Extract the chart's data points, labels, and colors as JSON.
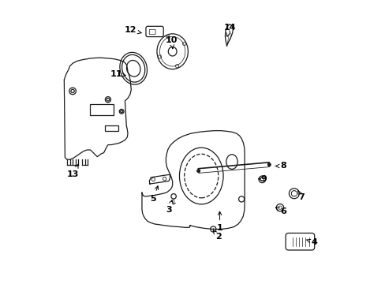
{
  "background_color": "#ffffff",
  "line_color": "#1a1a1a",
  "fig_width": 4.89,
  "fig_height": 3.6,
  "dpi": 100,
  "label_fontsize": 8,
  "label_fontweight": "bold",
  "parts_labels": {
    "1": [
      0.595,
      0.265,
      0.595,
      0.195
    ],
    "2": [
      0.57,
      0.19,
      0.59,
      0.165
    ],
    "3": [
      0.43,
      0.305,
      0.415,
      0.26
    ],
    "4": [
      0.9,
      0.155,
      0.93,
      0.145
    ],
    "5": [
      0.38,
      0.355,
      0.36,
      0.3
    ],
    "6": [
      0.79,
      0.27,
      0.82,
      0.255
    ],
    "7": [
      0.87,
      0.33,
      0.885,
      0.305
    ],
    "8": [
      0.79,
      0.415,
      0.82,
      0.415
    ],
    "9": [
      0.73,
      0.37,
      0.75,
      0.368
    ],
    "10": [
      0.43,
      0.82,
      0.425,
      0.86
    ],
    "11": [
      0.265,
      0.735,
      0.23,
      0.74
    ],
    "12": [
      0.32,
      0.885,
      0.28,
      0.895
    ],
    "13": [
      0.1,
      0.43,
      0.075,
      0.385
    ],
    "14": [
      0.62,
      0.87,
      0.63,
      0.905
    ]
  }
}
